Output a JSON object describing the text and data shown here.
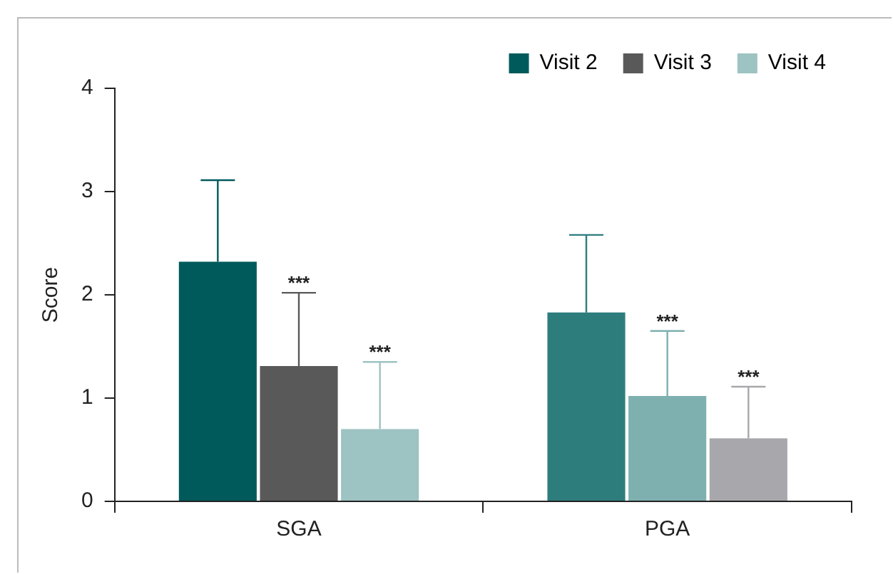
{
  "chart_data": {
    "type": "bar",
    "ylabel": "Score",
    "categories": [
      "SGA",
      "PGA"
    ],
    "series": [
      {
        "name": "Visit 2",
        "color": "#005a5c",
        "colors": [
          "#005a5c",
          "#2e7d7d"
        ],
        "values": [
          2.32,
          1.83
        ],
        "errors": [
          [
            2.32,
            3.11
          ],
          [
            1.83,
            2.58
          ]
        ]
      },
      {
        "name": "Visit 3",
        "color": "#595959",
        "colors": [
          "#595959",
          "#7fb0b0"
        ],
        "values": [
          1.31,
          1.02
        ],
        "errors": [
          [
            1.31,
            2.02
          ],
          [
            1.02,
            1.65
          ]
        ]
      },
      {
        "name": "Visit 4",
        "color": "#9dc3c2",
        "colors": [
          "#9dc3c2",
          "#a8a8ac"
        ],
        "values": [
          0.7,
          0.61
        ],
        "errors": [
          [
            0.7,
            1.35
          ],
          [
            0.61,
            1.11
          ]
        ]
      }
    ],
    "ylim": [
      0,
      4
    ],
    "yticks": [
      0,
      1,
      2,
      3,
      4
    ],
    "grid": false,
    "legend": "top right",
    "annotations": [
      "***",
      "***",
      "***",
      "***"
    ]
  }
}
